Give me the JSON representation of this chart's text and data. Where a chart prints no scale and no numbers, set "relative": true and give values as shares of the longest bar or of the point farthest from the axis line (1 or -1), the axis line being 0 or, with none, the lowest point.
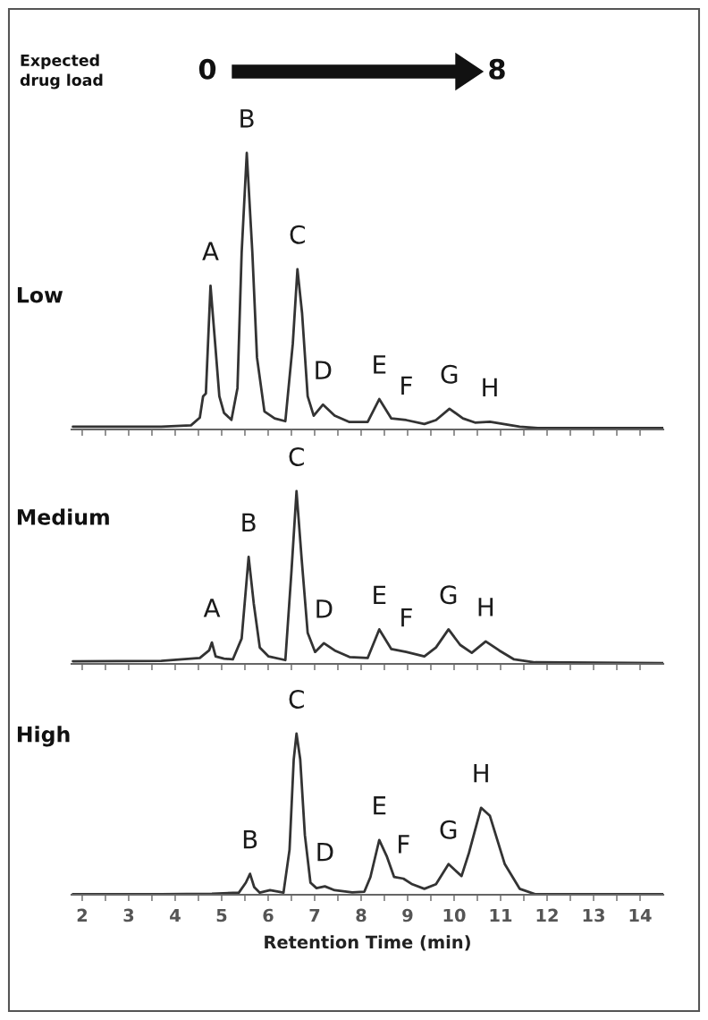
{
  "chart_data": [
    {
      "type": "line",
      "title": "Low",
      "relative": true,
      "xlim": [
        1.77,
        14.5
      ],
      "xticks": [
        2,
        {
          "value": 2.5,
          "label": null
        },
        3,
        {
          "value": 3.5,
          "label": null
        },
        4,
        {
          "value": 4.5,
          "label": null
        },
        5,
        {
          "value": 5.5,
          "label": null
        },
        6,
        {
          "value": 6.5,
          "label": null
        },
        7,
        {
          "value": 7.5,
          "label": null
        },
        8,
        {
          "value": 8.5,
          "label": null
        },
        9,
        {
          "value": 9.5,
          "label": null
        },
        10,
        {
          "value": 10.5,
          "label": null
        },
        11,
        {
          "value": 11.5,
          "label": null
        },
        12,
        {
          "value": 12.5,
          "label": null
        },
        13,
        {
          "value": 13.5,
          "label": null
        },
        14
      ],
      "tick_labels": false,
      "series": [
        {
          "color": "#333333",
          "x": [
            1.8,
            3.7,
            4.34,
            4.53,
            4.6,
            4.66,
            4.76,
            4.86,
            4.95,
            5.05,
            5.21,
            5.34,
            5.43,
            5.54,
            5.66,
            5.76,
            5.92,
            6.14,
            6.37,
            6.53,
            6.63,
            6.73,
            6.85,
            6.98,
            7.18,
            7.43,
            7.75,
            8.14,
            8.39,
            8.65,
            8.97,
            9.36,
            9.61,
            9.9,
            10.19,
            10.45,
            10.77,
            11.41,
            11.8,
            14.5
          ],
          "values": [
            0.01,
            0.01,
            0.015,
            0.043,
            0.12,
            0.13,
            0.52,
            0.31,
            0.12,
            0.06,
            0.035,
            0.15,
            0.64,
            1.0,
            0.64,
            0.26,
            0.065,
            0.04,
            0.03,
            0.31,
            0.58,
            0.42,
            0.12,
            0.05,
            0.09,
            0.05,
            0.027,
            0.027,
            0.11,
            0.04,
            0.034,
            0.02,
            0.034,
            0.075,
            0.04,
            0.025,
            0.028,
            0.01,
            0.005,
            0.005
          ]
        }
      ],
      "annotations": [
        "Expected\ndrug load",
        "0",
        "8",
        {
          "text": "A",
          "x": 4.76,
          "y": 0.52
        },
        {
          "text": "B",
          "x": 5.54,
          "y": 1.0
        },
        {
          "text": "C",
          "x": 6.63,
          "y": 0.58
        },
        {
          "text": "D",
          "x": 7.18,
          "y": 0.09
        },
        {
          "text": "E",
          "x": 8.39,
          "y": 0.11
        },
        {
          "text": "F",
          "x": 8.97,
          "y": 0.034
        },
        {
          "text": "G",
          "x": 9.9,
          "y": 0.075
        },
        {
          "text": "H",
          "x": 10.77,
          "y": 0.028
        }
      ]
    },
    {
      "type": "line",
      "title": "Medium",
      "relative": true,
      "xlim": [
        1.77,
        14.5
      ],
      "xticks": [
        2,
        {
          "value": 2.5,
          "label": null
        },
        3,
        {
          "value": 3.5,
          "label": null
        },
        4,
        {
          "value": 4.5,
          "label": null
        },
        5,
        {
          "value": 5.5,
          "label": null
        },
        6,
        {
          "value": 6.5,
          "label": null
        },
        7,
        {
          "value": 7.5,
          "label": null
        },
        8,
        {
          "value": 8.5,
          "label": null
        },
        9,
        {
          "value": 9.5,
          "label": null
        },
        10,
        {
          "value": 10.5,
          "label": null
        },
        11,
        {
          "value": 11.5,
          "label": null
        },
        12,
        {
          "value": 12.5,
          "label": null
        },
        13,
        {
          "value": 13.5,
          "label": null
        },
        14
      ],
      "tick_labels": false,
      "series": [
        {
          "color": "#333333",
          "x": [
            1.8,
            3.7,
            4.53,
            4.73,
            4.79,
            4.87,
            5.05,
            5.24,
            5.43,
            5.58,
            5.69,
            5.82,
            6.01,
            6.37,
            6.5,
            6.61,
            6.72,
            6.85,
            7.01,
            7.2,
            7.43,
            7.75,
            8.14,
            8.39,
            8.65,
            8.97,
            9.36,
            9.61,
            9.88,
            10.13,
            10.38,
            10.68,
            10.97,
            11.29,
            11.74,
            14.5
          ],
          "values": [
            0.015,
            0.017,
            0.034,
            0.078,
            0.124,
            0.043,
            0.03,
            0.026,
            0.147,
            0.62,
            0.35,
            0.095,
            0.043,
            0.022,
            0.53,
            1.0,
            0.61,
            0.18,
            0.069,
            0.12,
            0.078,
            0.04,
            0.034,
            0.2,
            0.086,
            0.069,
            0.043,
            0.095,
            0.2,
            0.11,
            0.064,
            0.13,
            0.078,
            0.026,
            0.009,
            0.005
          ]
        }
      ],
      "annotations": [
        {
          "text": "A",
          "x": 4.79,
          "y": 0.124
        },
        {
          "text": "B",
          "x": 5.58,
          "y": 0.62
        },
        {
          "text": "C",
          "x": 6.61,
          "y": 1.0
        },
        {
          "text": "D",
          "x": 7.2,
          "y": 0.12
        },
        {
          "text": "E",
          "x": 8.39,
          "y": 0.2
        },
        {
          "text": "F",
          "x": 8.97,
          "y": 0.069
        },
        {
          "text": "G",
          "x": 9.88,
          "y": 0.2
        },
        {
          "text": "H",
          "x": 10.68,
          "y": 0.13
        }
      ]
    },
    {
      "type": "line",
      "title": "High",
      "relative": true,
      "xlim": [
        1.77,
        14.5
      ],
      "xlabel": "Retention Time (min)",
      "xticks": [
        2,
        {
          "value": 2.5,
          "label": null
        },
        3,
        {
          "value": 3.5,
          "label": null
        },
        4,
        {
          "value": 4.5,
          "label": null
        },
        5,
        {
          "value": 5.5,
          "label": null
        },
        6,
        {
          "value": 6.5,
          "label": null
        },
        7,
        {
          "value": 7.5,
          "label": null
        },
        8,
        {
          "value": 8.5,
          "label": null
        },
        9,
        {
          "value": 9.5,
          "label": null
        },
        10,
        {
          "value": 10.5,
          "label": null
        },
        11,
        {
          "value": 11.5,
          "label": null
        },
        12,
        {
          "value": 12.5,
          "label": null
        },
        13,
        {
          "value": 13.5,
          "label": null
        },
        14
      ],
      "tick_labels": "x",
      "series": [
        {
          "color": "#333333",
          "x": [
            1.8,
            3.7,
            4.79,
            5.37,
            5.52,
            5.61,
            5.7,
            5.82,
            6.04,
            6.33,
            6.46,
            6.55,
            6.61,
            6.69,
            6.79,
            6.91,
            7.04,
            7.22,
            7.43,
            7.81,
            8.07,
            8.2,
            8.39,
            8.55,
            8.71,
            8.91,
            9.1,
            9.36,
            9.61,
            9.88,
            10.16,
            10.32,
            10.58,
            10.77,
            11.09,
            11.41,
            11.74,
            14.5
          ],
          "values": [
            0.004,
            0.004,
            0.006,
            0.013,
            0.075,
            0.13,
            0.047,
            0.013,
            0.028,
            0.013,
            0.28,
            0.84,
            1.0,
            0.84,
            0.37,
            0.075,
            0.041,
            0.052,
            0.028,
            0.015,
            0.019,
            0.11,
            0.34,
            0.24,
            0.11,
            0.1,
            0.065,
            0.037,
            0.065,
            0.19,
            0.116,
            0.26,
            0.54,
            0.49,
            0.19,
            0.037,
            0.004,
            0.004
          ]
        }
      ],
      "annotations": [
        {
          "text": "B",
          "x": 5.61,
          "y": 0.13
        },
        {
          "text": "C",
          "x": 6.61,
          "y": 1.0
        },
        {
          "text": "D",
          "x": 7.22,
          "y": 0.052
        },
        {
          "text": "E",
          "x": 8.39,
          "y": 0.34
        },
        {
          "text": "F",
          "x": 8.91,
          "y": 0.1
        },
        {
          "text": "G",
          "x": 9.88,
          "y": 0.19
        },
        {
          "text": "H",
          "x": 10.58,
          "y": 0.54
        }
      ]
    }
  ]
}
